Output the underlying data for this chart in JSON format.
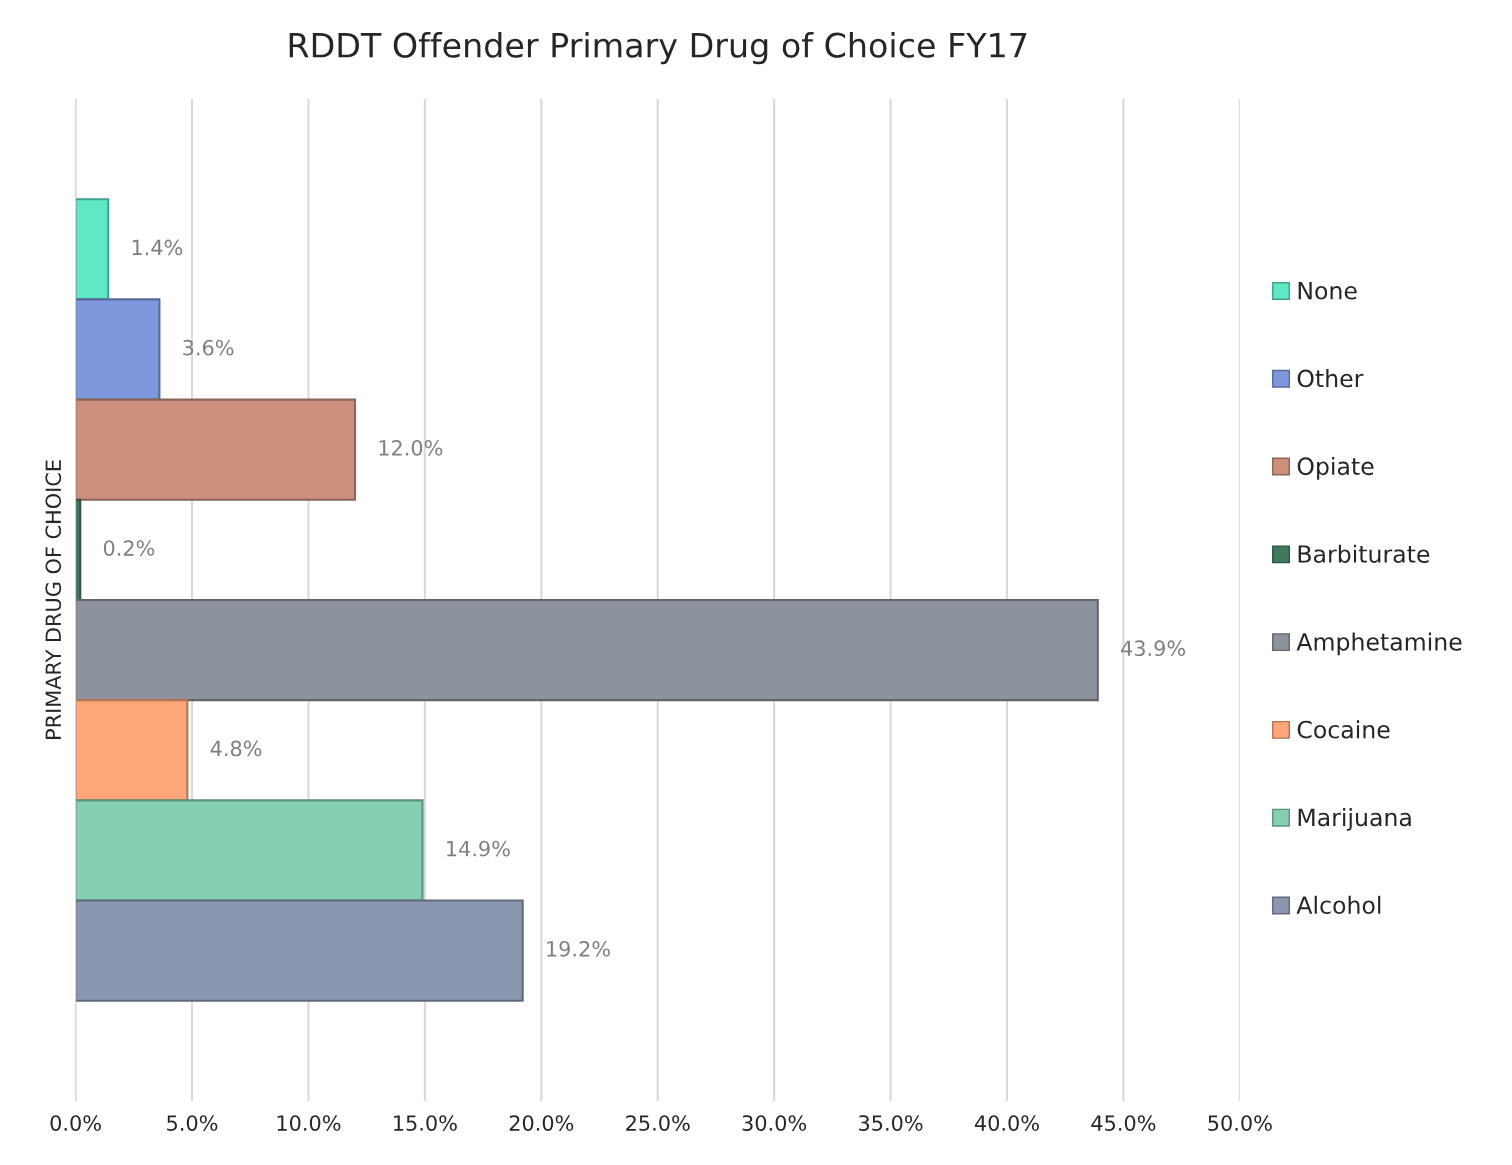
{
  "chart_data": {
    "type": "bar",
    "orientation": "horizontal",
    "title": "RDDT Offender Primary Drug of Choice FY17",
    "ylabel": "PRIMARY DRUG OF CHOICE",
    "categories": [
      null
    ],
    "series": [
      {
        "name": "None",
        "color": "#5fe8c4",
        "values": [
          1.4
        ],
        "value_labels": [
          "1.4%"
        ]
      },
      {
        "name": "Other",
        "color": "#7d98dc",
        "values": [
          3.6
        ],
        "value_labels": [
          "3.6%"
        ]
      },
      {
        "name": "Opiate",
        "color": "#cc8f7c",
        "values": [
          12.0
        ],
        "value_labels": [
          "12.0%"
        ]
      },
      {
        "name": "Barbiturate",
        "color": "#3f7a5e",
        "values": [
          0.2
        ],
        "value_labels": [
          "0.2%"
        ]
      },
      {
        "name": "Amphetamine",
        "color": "#8d939c",
        "values": [
          43.9
        ],
        "value_labels": [
          "43.9%"
        ]
      },
      {
        "name": "Cocaine",
        "color": "#ffa679",
        "values": [
          4.8
        ],
        "value_labels": [
          "4.8%"
        ]
      },
      {
        "name": "Marijuana",
        "color": "#86cfb2",
        "values": [
          14.9
        ],
        "value_labels": [
          "14.9%"
        ]
      },
      {
        "name": "Alcohol",
        "color": "#8b97b0",
        "values": [
          19.2
        ],
        "value_labels": [
          "19.2%"
        ]
      }
    ],
    "xlim": [
      0,
      50
    ],
    "xticks": [
      {
        "value": 0,
        "label": "0.0%"
      },
      {
        "value": 5,
        "label": "5.0%"
      },
      {
        "value": 10,
        "label": "10.0%"
      },
      {
        "value": 15,
        "label": "15.0%"
      },
      {
        "value": 20,
        "label": "20.0%"
      },
      {
        "value": 25,
        "label": "25.0%"
      },
      {
        "value": 30,
        "label": "30.0%"
      },
      {
        "value": 35,
        "label": "35.0%"
      },
      {
        "value": 40,
        "label": "40.0%"
      },
      {
        "value": 45,
        "label": "45.0%"
      },
      {
        "value": 50,
        "label": "50.0%"
      }
    ],
    "grid": "x",
    "legend": "right"
  }
}
